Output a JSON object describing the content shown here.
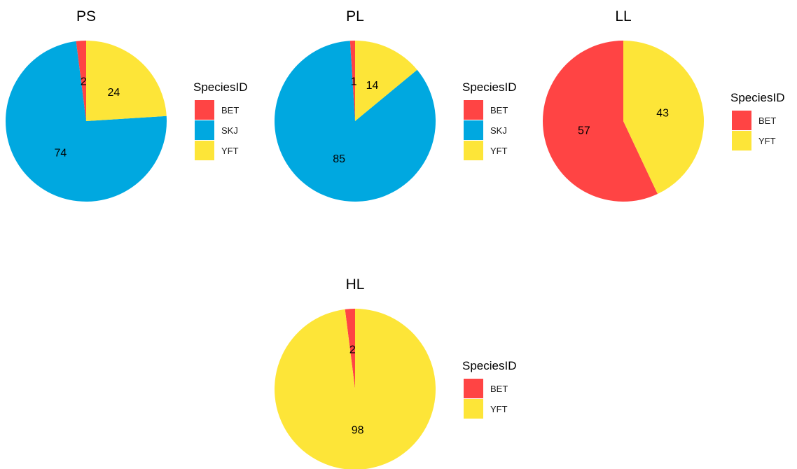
{
  "colors": {
    "BET": "#FF4444",
    "SKJ": "#00A8E0",
    "YFT": "#FDE538"
  },
  "chart_data": [
    {
      "type": "pie",
      "title": "PS",
      "legend_title": "SpeciesID",
      "legend_position": "right",
      "categories": [
        "BET",
        "SKJ",
        "YFT"
      ],
      "values": [
        2,
        74,
        24
      ],
      "labels": [
        "2",
        "74",
        "24"
      ]
    },
    {
      "type": "pie",
      "title": "PL",
      "legend_title": "SpeciesID",
      "legend_position": "right",
      "categories": [
        "BET",
        "SKJ",
        "YFT"
      ],
      "values": [
        1,
        85,
        14
      ],
      "labels": [
        "1",
        "85",
        "14"
      ]
    },
    {
      "type": "pie",
      "title": "LL",
      "legend_title": "SpeciesID",
      "legend_position": "right",
      "categories": [
        "BET",
        "YFT"
      ],
      "values": [
        57,
        43
      ],
      "labels": [
        "57",
        "43"
      ]
    },
    {
      "type": "pie",
      "title": "HL",
      "legend_title": "SpeciesID",
      "legend_position": "right",
      "categories": [
        "BET",
        "YFT"
      ],
      "values": [
        2,
        98
      ],
      "labels": [
        "2",
        "98"
      ]
    }
  ]
}
